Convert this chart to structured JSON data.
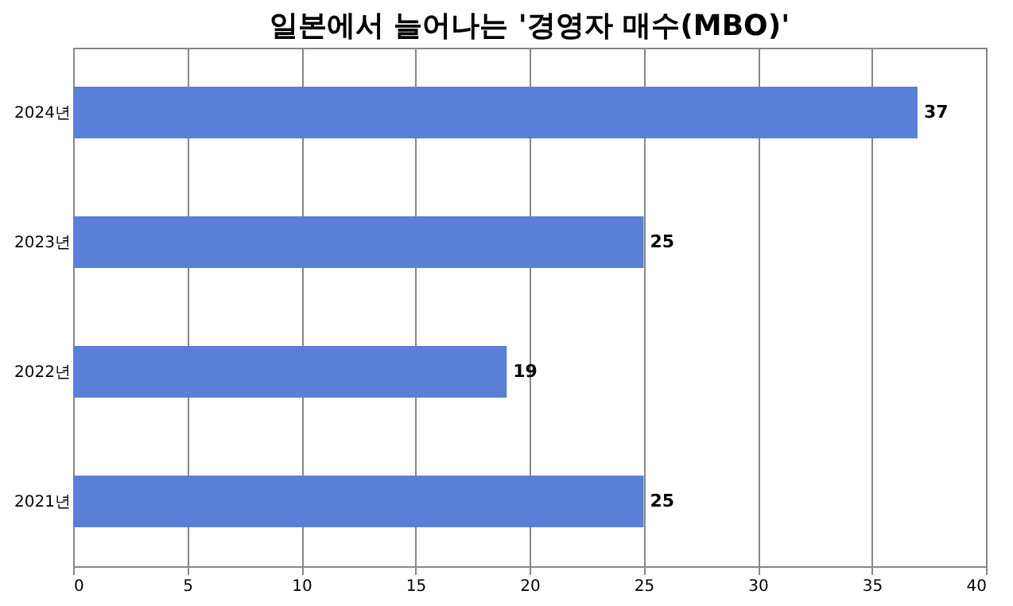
{
  "chart_data": {
    "type": "bar",
    "orientation": "horizontal",
    "title": "일본에서 늘어나는 '경영자 매수(MBO)'",
    "categories": [
      "2024년",
      "2023년",
      "2022년",
      "2021년"
    ],
    "values": [
      37,
      25,
      19,
      25
    ],
    "color": "#5b7fd6",
    "xlim": [
      0,
      40
    ],
    "xticks": [
      0,
      5,
      10,
      15,
      20,
      25,
      30,
      35,
      40
    ],
    "grid": "x",
    "data_labels": true
  }
}
